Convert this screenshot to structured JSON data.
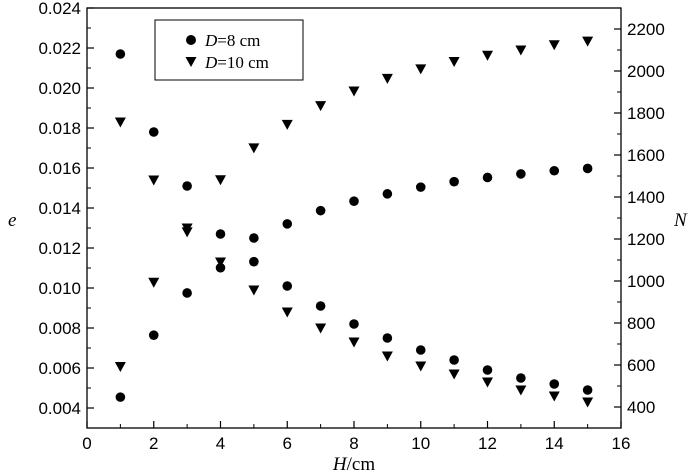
{
  "chart_data": {
    "type": "scatter",
    "xlabel": {
      "italic": "H",
      "unit": "/cm"
    },
    "ylabel_left": "e",
    "ylabel_right": "N",
    "xlim": [
      0,
      16
    ],
    "ylim_left": [
      0.003,
      0.024
    ],
    "ylim_right": [
      300,
      2300
    ],
    "x_ticks": [
      0,
      2,
      4,
      6,
      8,
      10,
      12,
      14,
      16
    ],
    "y_left_ticks": [
      0.004,
      0.006,
      0.008,
      0.01,
      0.012,
      0.014,
      0.016,
      0.018,
      0.02,
      0.022,
      0.024
    ],
    "y_left_tick_labels": [
      "0.004",
      "0.006",
      "0.008",
      "0.010",
      "0.012",
      "0.014",
      "0.016",
      "0.018",
      "0.020",
      "0.022",
      "0.024"
    ],
    "y_right_ticks": [
      400,
      600,
      800,
      1000,
      1200,
      1400,
      1600,
      1800,
      2000,
      2200
    ],
    "y_right_tick_labels": [
      "400",
      "600",
      "800",
      "1000",
      "1200",
      "1400",
      "1600",
      "1800",
      "2000",
      "2200"
    ],
    "grid": false,
    "legend_position": "top-left",
    "x": [
      1,
      2,
      3,
      4,
      5,
      6,
      7,
      8,
      9,
      10,
      11,
      12,
      13,
      14,
      15
    ],
    "series": [
      {
        "name": "D=8 cm",
        "legend_italic": "D",
        "legend_rest": "=8 cm",
        "marker": "circle",
        "axis": "left",
        "values": [
          0.0217,
          0.0178,
          0.0151,
          0.0127,
          0.0125,
          0.0101,
          0.0091,
          0.0082,
          0.0075,
          0.0069,
          0.0064,
          0.0059,
          0.0055,
          0.0052,
          0.0049
        ]
      },
      {
        "name": "D=8 cm",
        "marker": "circle",
        "axis": "right",
        "values": [
          447,
          742,
          943,
          1063,
          1092,
          1272,
          1335,
          1380,
          1415,
          1447,
          1473,
          1493,
          1510,
          1525,
          1536
        ]
      },
      {
        "name": "D=10 cm",
        "legend_italic": "D",
        "legend_rest": "=10 cm",
        "marker": "triangle-down",
        "axis": "left",
        "values": [
          0.0183,
          0.0154,
          0.013,
          0.0113,
          0.0099,
          0.0088,
          0.008,
          0.0073,
          0.0066,
          0.0061,
          0.0057,
          0.0053,
          0.0049,
          0.0046,
          0.0043
        ]
      },
      {
        "name": "D=10 cm",
        "marker": "triangle-down",
        "axis": "right",
        "values": [
          593,
          994,
          1234,
          1482,
          1634,
          1746,
          1835,
          1905,
          1965,
          2010,
          2045,
          2075,
          2100,
          2125,
          2142
        ]
      }
    ]
  }
}
